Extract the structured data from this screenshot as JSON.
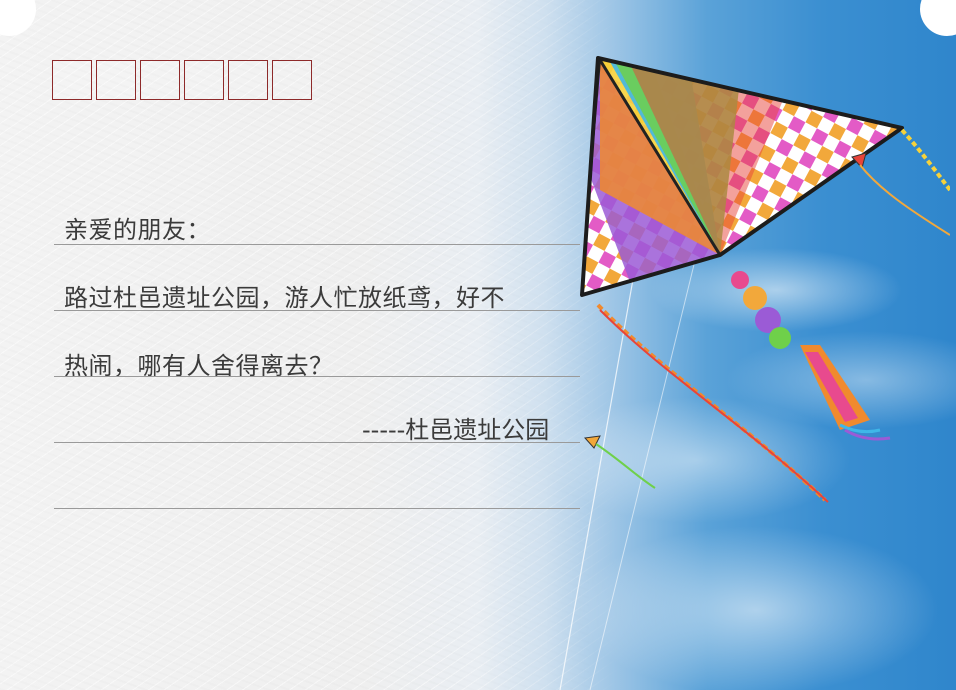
{
  "letter": {
    "greeting": "亲爱的朋友：",
    "line1": "路过杜邑遗址公园，游人忙放纸鸢，好不",
    "line2": "热闹，哪有人舍得离去？",
    "signature": "-----杜邑遗址公园"
  },
  "zip_boxes": [
    "",
    "",
    "",
    "",
    "",
    ""
  ],
  "image": {
    "subject": "kite-icon",
    "background": "sky-with-clouds"
  },
  "colors": {
    "zip_border": "#8e2a2a",
    "rule_line": "#9a9a9a",
    "text": "#3b3b3b",
    "sky": "#3b8fd1"
  }
}
